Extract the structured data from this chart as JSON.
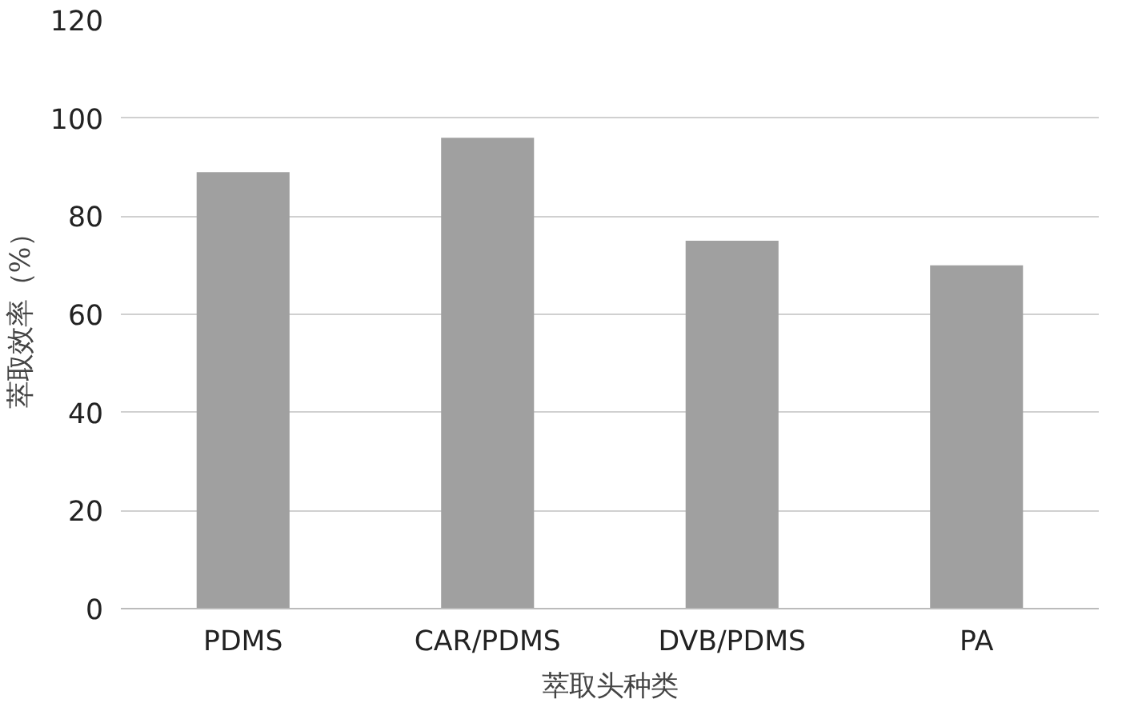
{
  "chart_data": {
    "type": "bar",
    "xlabel": "萃取头种类",
    "ylabel": "萃取效率（%）",
    "categories": [
      "PDMS",
      "CAR/PDMS",
      "DVB/PDMS",
      "PA"
    ],
    "values": [
      89,
      96,
      75,
      70
    ],
    "color": "#a0a0a0",
    "ylim": [
      0,
      120
    ],
    "yticks": [
      0,
      20,
      40,
      60,
      80,
      100,
      120
    ],
    "grid": "y"
  }
}
